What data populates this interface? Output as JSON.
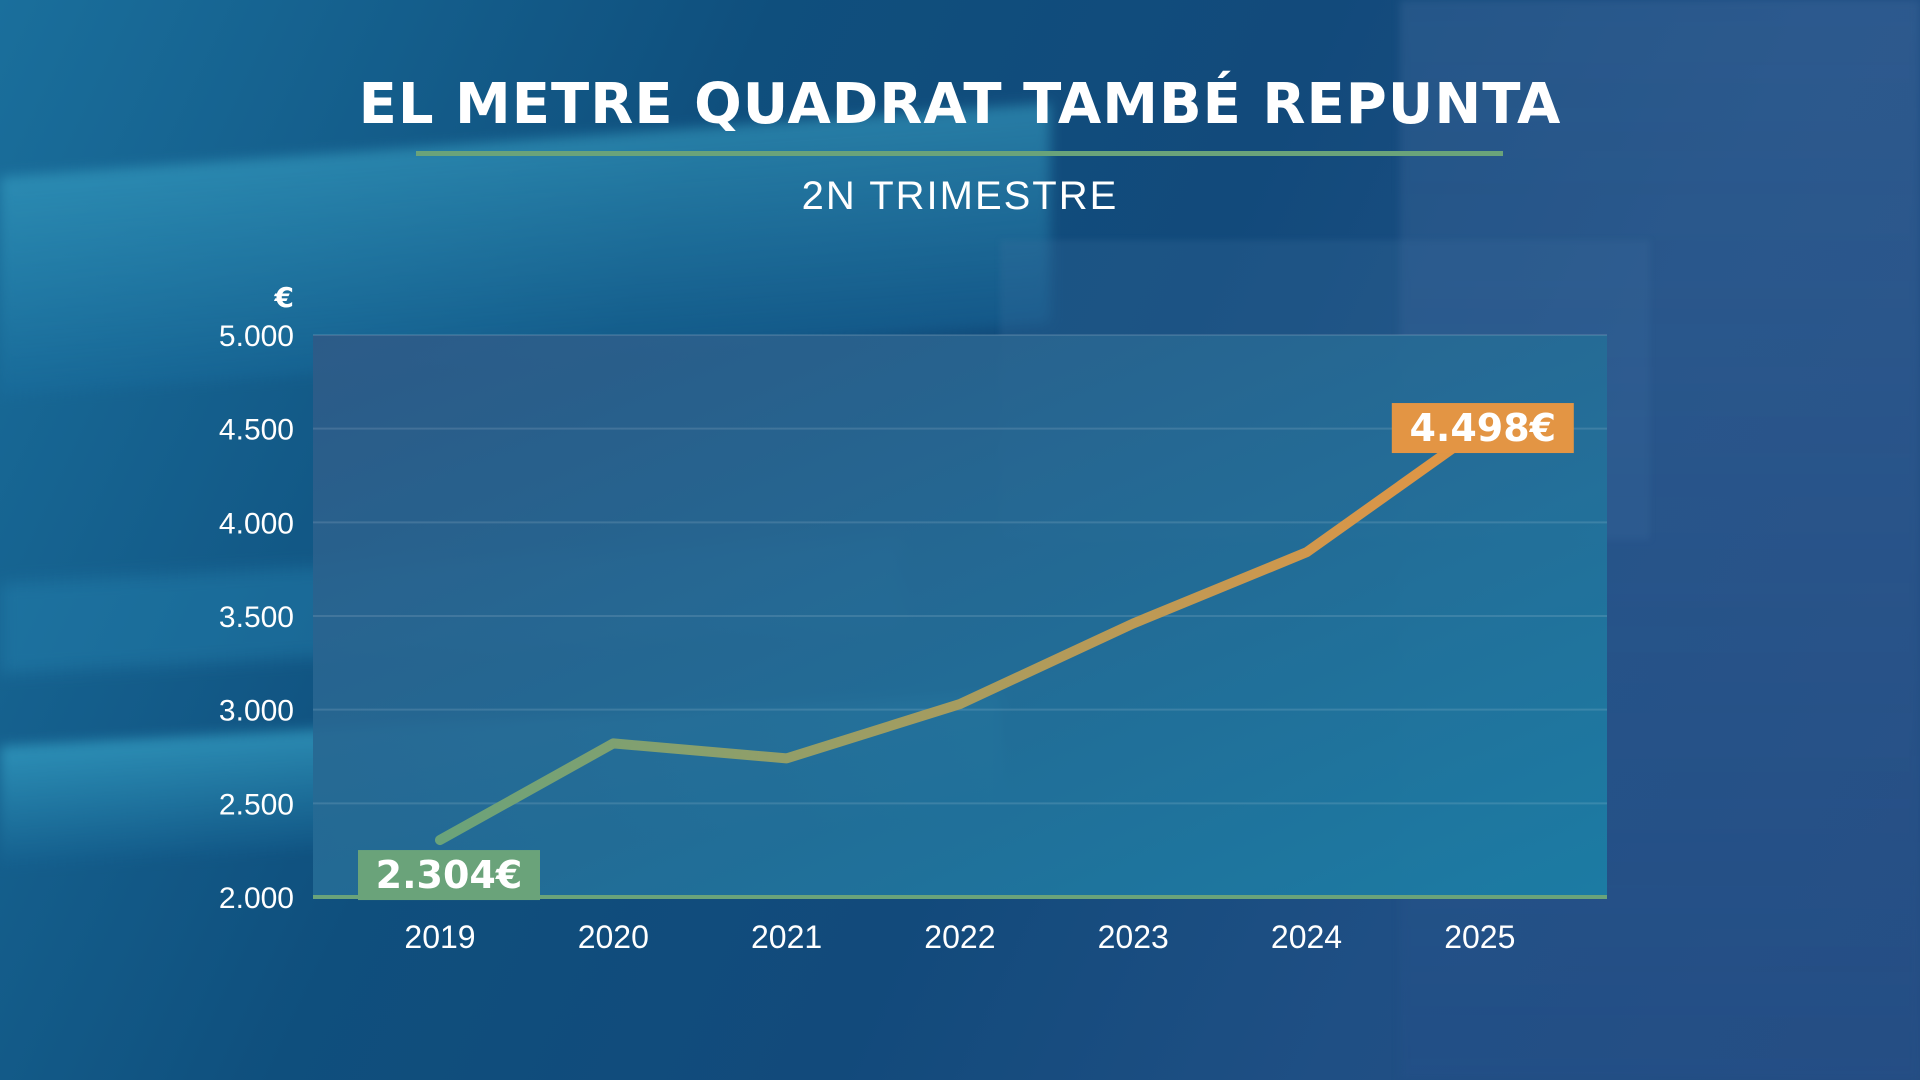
{
  "title": "EL METRE QUADRAT TAMBÉ REPUNTA",
  "subtitle": "2N TRIMESTRE",
  "colors": {
    "accent_green": "#6aa37a",
    "accent_orange": "#e39544",
    "plot_background_start": "#2e5a87",
    "plot_background_end": "#1b7fa6"
  },
  "chart_data": {
    "type": "line",
    "title": "EL METRE QUADRAT TAMBÉ REPUNTA",
    "subtitle": "2N TRIMESTRE",
    "ylabel": "€",
    "xlabel": "",
    "categories": [
      "2019",
      "2020",
      "2021",
      "2022",
      "2023",
      "2024",
      "2025"
    ],
    "x": [
      "2019",
      "2020",
      "2021",
      "2022",
      "2023",
      "2024",
      "2025"
    ],
    "series": [
      {
        "values": [
          2304,
          2820,
          2740,
          3030,
          3460,
          3840,
          4498
        ]
      }
    ],
    "ylim": [
      2000,
      5000
    ],
    "yticks": [
      2000,
      2500,
      3000,
      3500,
      4000,
      4500,
      5000
    ],
    "ytick_labels": [
      "2.000",
      "2.500",
      "3.000",
      "3.500",
      "4.000",
      "4.500",
      "5.000"
    ],
    "annotations": [
      {
        "label": "2.304€",
        "category": "2019",
        "value": 2304,
        "color": "#6aa37a"
      },
      {
        "label": "4.498€",
        "category": "2025",
        "value": 4498,
        "color": "#e39544"
      }
    ],
    "grid": true,
    "legend": "none",
    "line_gradient": [
      "#6aa37a",
      "#e39544"
    ]
  }
}
